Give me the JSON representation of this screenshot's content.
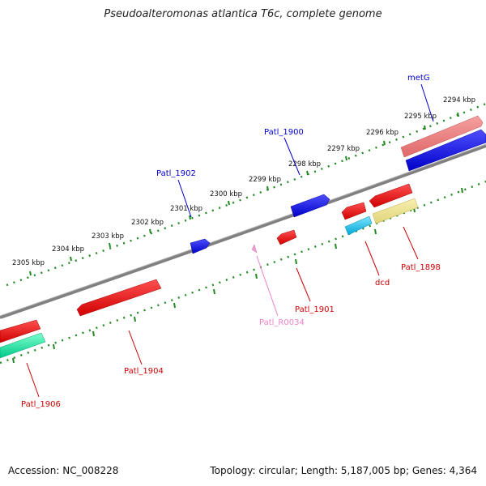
{
  "title": "Pseudoalteromonas atlantica T6c, complete genome",
  "footer": {
    "accession": "Accession: NC_008228",
    "summary": "Topology: circular; Length: 5,187,005 bp; Genes: 4,364"
  },
  "scale": {
    "unit": "kbp",
    "ticks": [
      "2294 kbp",
      "2295 kbp",
      "2296 kbp",
      "2297 kbp",
      "2298 kbp",
      "2299 kbp",
      "2300 kbp",
      "2301 kbp",
      "2302 kbp",
      "2303 kbp",
      "2304 kbp",
      "2305 kbp"
    ]
  },
  "genes": [
    {
      "label": "metG",
      "strand": "forward",
      "color": "#0000ee",
      "kind": "CDS"
    },
    {
      "label": "",
      "strand": "forward",
      "color": "#f08080",
      "kind": "CDS"
    },
    {
      "label": "Patl_1900",
      "strand": "forward",
      "color": "#0000ee",
      "kind": "CDS"
    },
    {
      "label": "Patl_1902",
      "strand": "forward",
      "color": "#0000ee",
      "kind": "CDS"
    },
    {
      "label": "Patl_1898",
      "strand": "reverse",
      "color": "#ee0000",
      "kind": "CDS"
    },
    {
      "label": "",
      "strand": "reverse",
      "color": "#f0e68c",
      "kind": "CDS"
    },
    {
      "label": "dcd",
      "strand": "reverse",
      "color": "#ee0000",
      "kind": "CDS"
    },
    {
      "label": "",
      "strand": "reverse",
      "color": "#00b8e6",
      "kind": "CDS"
    },
    {
      "label": "Patl_1901",
      "strand": "reverse",
      "color": "#ee0000",
      "kind": "CDS"
    },
    {
      "label": "Patl_R0034",
      "strand": "reverse",
      "color": "#ee82c8",
      "kind": "RNA"
    },
    {
      "label": "Patl_1904",
      "strand": "reverse",
      "color": "#ee0000",
      "kind": "CDS"
    },
    {
      "label": "Patl_1906",
      "strand": "reverse",
      "color": "#ee0000",
      "kind": "CDS"
    },
    {
      "label": "",
      "strand": "reverse",
      "color": "#00e6a0",
      "kind": "CDS"
    }
  ],
  "colors": {
    "backbone": "#888888",
    "tick": "#228822",
    "forward_label": "#0000cc",
    "reverse_label": "#cc0000",
    "rna_label": "#ee82c8"
  }
}
